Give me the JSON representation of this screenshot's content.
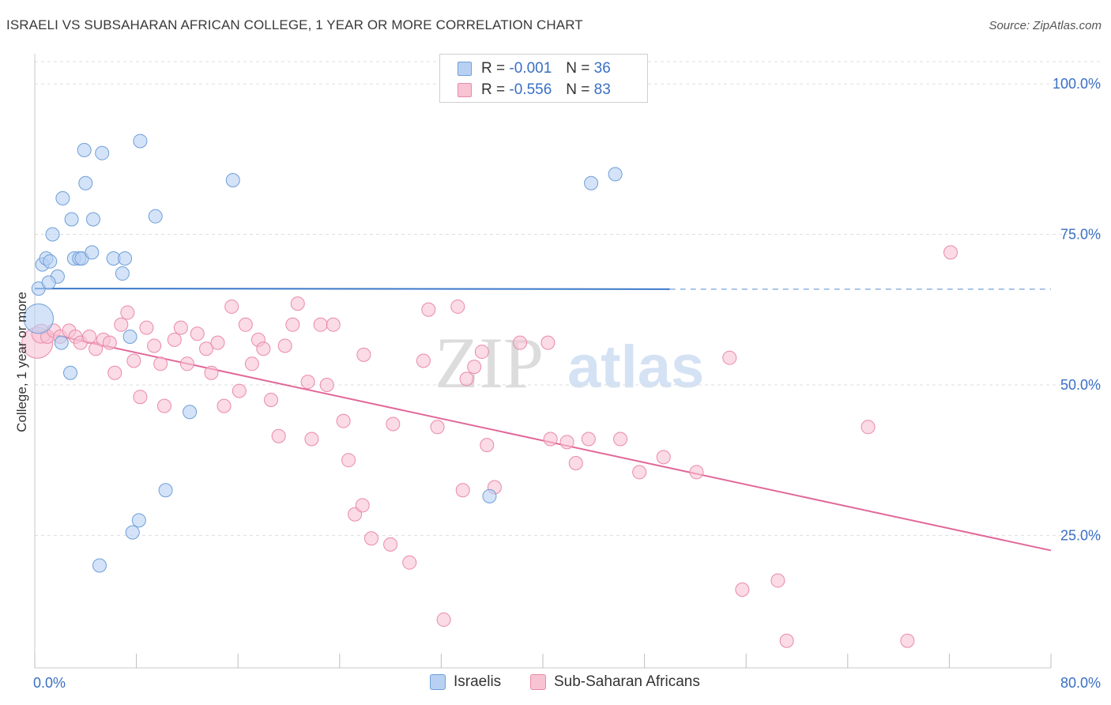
{
  "title": "ISRAELI VS SUBSAHARAN AFRICAN COLLEGE, 1 YEAR OR MORE CORRELATION CHART",
  "source": "Source: ZipAtlas.com",
  "watermark": {
    "zip": "ZIP",
    "atlas": "atlas"
  },
  "legend": {
    "r_label": "R =",
    "n_label": "N =",
    "series": [
      {
        "name": "Israelis",
        "r": "-0.001",
        "n": "36"
      },
      {
        "name": "Sub-Saharan Africans",
        "r": "-0.556",
        "n": "83"
      }
    ]
  },
  "colors": {
    "blue_fill": "#b8d1f3",
    "blue_stroke": "#6f9fd8",
    "blue_line": "#3a78c9",
    "pink_fill": "#f8c3d3",
    "pink_stroke": "#e98aaa",
    "pink_line": "#e2679a",
    "grid": "#dddddd",
    "axis_text": "#3a6fc4"
  },
  "chart_data": {
    "type": "scatter",
    "title": "ISRAELI VS SUBSAHARAN AFRICAN COLLEGE, 1 YEAR OR MORE CORRELATION CHART",
    "xlabel": "",
    "ylabel": "College, 1 year or more",
    "xlim": [
      0,
      80
    ],
    "ylim": [
      3,
      105
    ],
    "x_tick_labels": [
      "0.0%",
      "80.0%"
    ],
    "y_ticks": [
      25,
      50,
      75,
      100
    ],
    "y_tick_labels": [
      "25.0%",
      "50.0%",
      "75.0%",
      "100.0%"
    ],
    "series": [
      {
        "name": "Israelis",
        "points": [
          [
            0.3,
            61.0,
            2.2
          ],
          [
            0.3,
            66.0,
            1
          ],
          [
            0.6,
            70.0,
            1
          ],
          [
            0.9,
            71.0,
            1
          ],
          [
            1.2,
            70.5,
            1
          ],
          [
            1.4,
            75.0,
            1
          ],
          [
            1.8,
            68.0,
            1
          ],
          [
            1.1,
            67.0,
            1
          ],
          [
            2.2,
            81.0,
            1
          ],
          [
            2.9,
            77.5,
            1
          ],
          [
            2.1,
            57.0,
            1
          ],
          [
            2.8,
            52.0,
            1
          ],
          [
            3.1,
            71.0,
            1
          ],
          [
            3.5,
            71.0,
            1
          ],
          [
            3.7,
            71.0,
            1
          ],
          [
            3.9,
            89.0,
            1
          ],
          [
            4.0,
            83.5,
            1
          ],
          [
            4.5,
            72.0,
            1
          ],
          [
            4.6,
            77.5,
            1
          ],
          [
            5.3,
            88.5,
            1
          ],
          [
            6.2,
            71.0,
            1
          ],
          [
            6.9,
            68.5,
            1
          ],
          [
            7.1,
            71.0,
            1
          ],
          [
            7.5,
            58.0,
            1
          ],
          [
            8.3,
            90.5,
            1
          ],
          [
            9.5,
            78.0,
            1
          ],
          [
            5.1,
            20.0,
            1
          ],
          [
            7.7,
            25.5,
            1
          ],
          [
            8.2,
            27.5,
            1
          ],
          [
            10.3,
            32.5,
            1
          ],
          [
            12.2,
            45.5,
            1
          ],
          [
            15.6,
            84.0,
            1
          ],
          [
            35.8,
            31.5,
            1
          ],
          [
            43.8,
            83.5,
            1
          ],
          [
            45.7,
            85.0,
            1
          ]
        ]
      },
      {
        "name": "Sub-Saharan Africans",
        "points": [
          [
            0.2,
            57.0,
            2.3
          ],
          [
            0.5,
            58.5,
            1.4
          ],
          [
            1.0,
            58.0,
            1
          ],
          [
            1.5,
            59.0,
            1
          ],
          [
            2.0,
            58.0,
            1
          ],
          [
            2.7,
            59.0,
            1
          ],
          [
            3.2,
            58.0,
            1
          ],
          [
            3.6,
            57.0,
            1
          ],
          [
            4.3,
            58.0,
            1
          ],
          [
            4.8,
            56.0,
            1
          ],
          [
            5.4,
            57.5,
            1
          ],
          [
            5.9,
            57.0,
            1
          ],
          [
            6.3,
            52.0,
            1
          ],
          [
            6.8,
            60.0,
            1
          ],
          [
            7.3,
            62.0,
            1
          ],
          [
            7.8,
            54.0,
            1
          ],
          [
            8.3,
            48.0,
            1
          ],
          [
            8.8,
            59.5,
            1
          ],
          [
            9.4,
            56.5,
            1
          ],
          [
            9.9,
            53.5,
            1
          ],
          [
            10.2,
            46.5,
            1
          ],
          [
            11.0,
            57.5,
            1
          ],
          [
            11.5,
            59.5,
            1
          ],
          [
            12.0,
            53.5,
            1
          ],
          [
            12.8,
            58.5,
            1
          ],
          [
            13.5,
            56.0,
            1
          ],
          [
            13.9,
            52.0,
            1
          ],
          [
            14.4,
            57.0,
            1
          ],
          [
            14.9,
            46.5,
            1
          ],
          [
            15.5,
            63.0,
            1
          ],
          [
            16.1,
            49.0,
            1
          ],
          [
            16.6,
            60.0,
            1
          ],
          [
            17.1,
            53.5,
            1
          ],
          [
            17.6,
            57.5,
            1
          ],
          [
            18.0,
            56.0,
            1
          ],
          [
            18.6,
            47.5,
            1
          ],
          [
            19.2,
            41.5,
            1
          ],
          [
            19.7,
            56.5,
            1
          ],
          [
            20.3,
            60.0,
            1
          ],
          [
            20.7,
            63.5,
            1
          ],
          [
            21.5,
            50.5,
            1
          ],
          [
            21.8,
            41.0,
            1
          ],
          [
            22.5,
            60.0,
            1
          ],
          [
            23.0,
            50.0,
            1
          ],
          [
            23.5,
            60.0,
            1
          ],
          [
            24.3,
            44.0,
            1
          ],
          [
            24.7,
            37.5,
            1
          ],
          [
            25.2,
            28.5,
            1
          ],
          [
            25.9,
            55.0,
            1
          ],
          [
            25.8,
            30.0,
            1
          ],
          [
            26.5,
            24.5,
            1
          ],
          [
            28.0,
            23.5,
            1
          ],
          [
            28.2,
            43.5,
            1
          ],
          [
            29.5,
            20.5,
            1
          ],
          [
            30.6,
            54.0,
            1
          ],
          [
            31.0,
            62.5,
            1
          ],
          [
            31.7,
            43.0,
            1
          ],
          [
            32.2,
            11.0,
            1
          ],
          [
            33.3,
            63.0,
            1
          ],
          [
            33.7,
            32.5,
            1
          ],
          [
            34.0,
            51.0,
            1
          ],
          [
            34.6,
            53.0,
            1
          ],
          [
            35.2,
            55.5,
            1
          ],
          [
            35.6,
            40.0,
            1
          ],
          [
            36.2,
            33.0,
            1
          ],
          [
            38.2,
            57.0,
            1
          ],
          [
            40.4,
            57.0,
            1
          ],
          [
            40.6,
            41.0,
            1
          ],
          [
            41.9,
            40.5,
            1
          ],
          [
            42.6,
            37.0,
            1
          ],
          [
            43.6,
            41.0,
            1
          ],
          [
            46.1,
            41.0,
            1
          ],
          [
            47.6,
            35.5,
            1
          ],
          [
            49.5,
            38.0,
            1
          ],
          [
            52.1,
            35.5,
            1
          ],
          [
            54.7,
            54.5,
            1
          ],
          [
            55.7,
            16.0,
            1
          ],
          [
            58.5,
            17.5,
            1
          ],
          [
            59.2,
            7.5,
            1
          ],
          [
            65.6,
            43.0,
            1
          ],
          [
            68.7,
            7.5,
            1
          ],
          [
            72.1,
            72.0,
            1
          ]
        ]
      }
    ],
    "trend_lines": [
      {
        "series": "Israelis",
        "x": [
          0,
          50,
          80
        ],
        "y": [
          66.0,
          65.9,
          65.9
        ],
        "dashed_from_x": 50
      },
      {
        "series": "Sub-Saharan Africans",
        "x": [
          0,
          80
        ],
        "y": [
          59.0,
          22.5
        ]
      }
    ]
  }
}
